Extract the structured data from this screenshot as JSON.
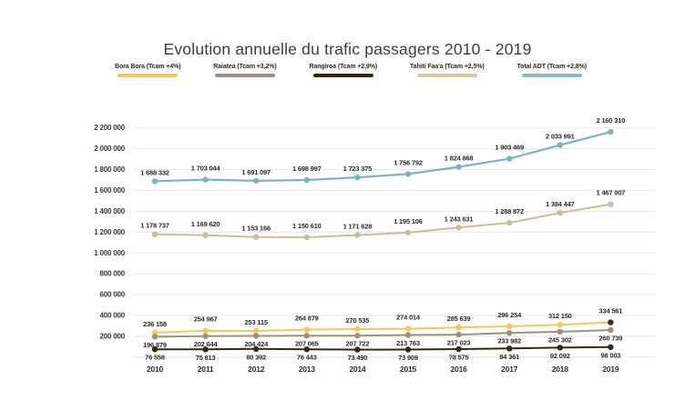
{
  "title": "Evolution annuelle du trafic passagers 2010 - 2019",
  "legend": {
    "items": [
      {
        "label": "Bora Bora  (Tcam +4%)",
        "color": "#f8c558"
      },
      {
        "label": "Raiatea  (Tcam +3,2%)",
        "color": "#9c9181"
      },
      {
        "label": "Rangiroa  (Tcam +2,9%)",
        "color": "#39280f"
      },
      {
        "label": "Tahiti Faa'a (Tcam +2,5%)",
        "color": "#d8c8a2"
      },
      {
        "label": "Total ADT (Tcam +2,8%)",
        "color": "#8bbac5"
      }
    ]
  },
  "chart_data": {
    "type": "line",
    "title": "Evolution annuelle du trafic passagers 2010 - 2019",
    "x": [
      2010,
      2011,
      2012,
      2013,
      2014,
      2015,
      2016,
      2017,
      2018,
      2019
    ],
    "series": [
      {
        "name": "Bora Bora",
        "legend_label": "Bora Bora  (Tcam +4%)",
        "color": "#f8c558",
        "last_point_color": "#3a2a12",
        "label_position": "above",
        "values": [
          236158,
          254967,
          253115,
          264879,
          270535,
          274014,
          285639,
          296254,
          312150,
          334561
        ]
      },
      {
        "name": "Raiatea",
        "legend_label": "Raiatea  (Tcam +3,2%)",
        "color": "#9c9181",
        "label_position": "below",
        "values": [
          196879,
          202644,
          204424,
          207065,
          207722,
          213763,
          217023,
          233982,
          245302,
          260739
        ]
      },
      {
        "name": "Rangiroa",
        "legend_label": "Rangiroa  (Tcam +2,9%)",
        "color": "#39280f",
        "label_position": "below",
        "values": [
          76558,
          75813,
          80392,
          76443,
          73490,
          73909,
          78575,
          84361,
          92092,
          98003
        ]
      },
      {
        "name": "Tahiti Faa'a",
        "legend_label": "Tahiti Faa'a (Tcam +2,5%)",
        "color": "#cdbc96",
        "label_position": "above",
        "values": [
          1178737,
          1169620,
          1153166,
          1150610,
          1171628,
          1195106,
          1243631,
          1288872,
          1384447,
          1467007
        ]
      },
      {
        "name": "Total ADT",
        "legend_label": "Total ADT (Tcam +2,8%)",
        "color": "#7fb2c0",
        "label_position": "above",
        "values": [
          1688332,
          1703044,
          1691097,
          1698997,
          1723375,
          1756792,
          1824868,
          1903469,
          2033991,
          2160310
        ]
      }
    ],
    "xlabel": "",
    "ylabel": "",
    "ylim": [
      0,
      2200000
    ],
    "ytick_step": 200000,
    "ytick_labels": [
      "200 000",
      "400 000",
      "600 000",
      "800 000",
      "1 000 000",
      "1 200 000",
      "1 400 000",
      "1 600 000",
      "1 800 000",
      "2 000 000",
      "2 200 000"
    ],
    "grid": true,
    "grid_color": "#e9e6e1",
    "legend_position": "top",
    "number_format": "space-separated"
  }
}
